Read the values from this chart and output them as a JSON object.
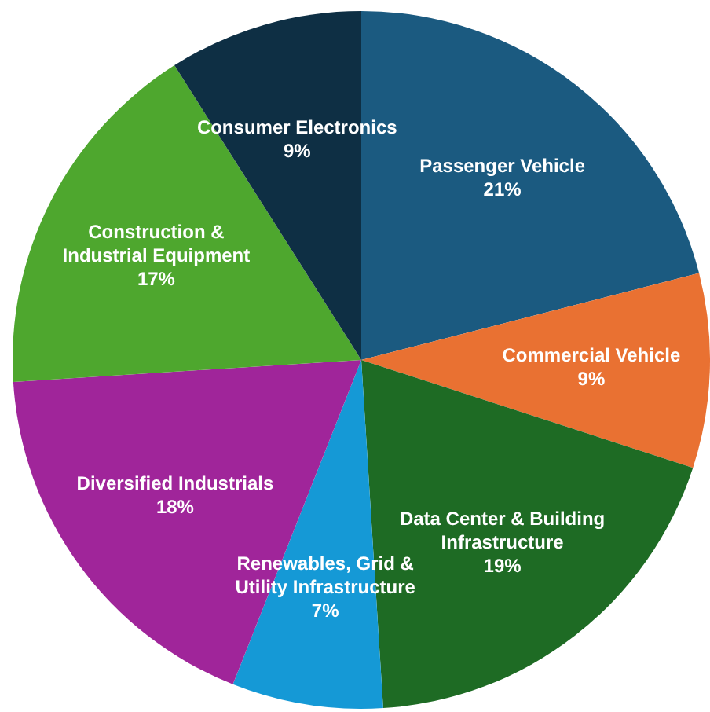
{
  "chart_data": {
    "type": "pie",
    "categories": [
      "Passenger Vehicle",
      "Commercial Vehicle",
      "Data Center  & Building Infrastructure",
      "Renewables, Grid & Utility Infrastructure",
      "Diversified Industrials",
      "Construction & Industrial Equipment",
      "Consumer Electronics"
    ],
    "values": [
      21,
      9,
      19,
      7,
      18,
      17,
      9
    ],
    "colors": [
      "#1b5a80",
      "#e97132",
      "#1e6b24",
      "#1599d6",
      "#a0259a",
      "#4ea72e",
      "#0e2f44"
    ],
    "value_labels": [
      "21%",
      "9%",
      "19%",
      "7%",
      "18%",
      "17%",
      "9%"
    ]
  }
}
